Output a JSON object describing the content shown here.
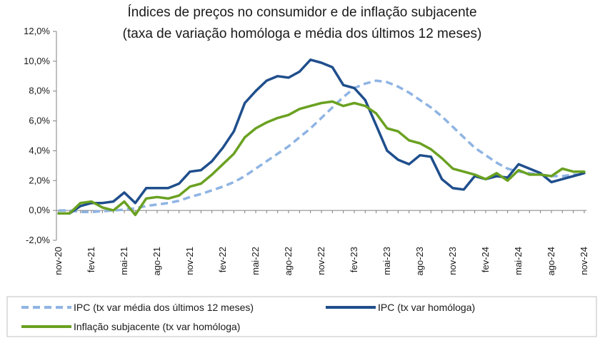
{
  "chart_data": {
    "type": "line",
    "title": "Índices de preços no consumidor e de inflação subjacente",
    "subtitle": "(taxa de variação homóloga e média dos últimos 12 meses)",
    "ylim": [
      -2,
      12
    ],
    "y_ticks": [
      "-2,0%",
      "0,0%",
      "2,0%",
      "4,0%",
      "6,0%",
      "8,0%",
      "10,0%",
      "12,0%"
    ],
    "y_tick_values": [
      -2,
      0,
      2,
      4,
      6,
      8,
      10,
      12
    ],
    "x": [
      "nov-20",
      "dez-20",
      "jan-21",
      "fev-21",
      "mar-21",
      "abr-21",
      "mai-21",
      "jun-21",
      "jul-21",
      "ago-21",
      "set-21",
      "out-21",
      "nov-21",
      "dez-21",
      "jan-22",
      "fev-22",
      "mar-22",
      "abr-22",
      "mai-22",
      "jun-22",
      "jul-22",
      "ago-22",
      "set-22",
      "out-22",
      "nov-22",
      "dez-22",
      "jan-23",
      "fev-23",
      "mar-23",
      "abr-23",
      "mai-23",
      "jun-23",
      "jul-23",
      "ago-23",
      "set-23",
      "out-23",
      "nov-23",
      "dez-23",
      "jan-24",
      "fev-24",
      "mar-24",
      "abr-24",
      "mai-24",
      "jun-24",
      "jul-24",
      "ago-24",
      "set-24",
      "out-24",
      "nov-24"
    ],
    "x_tick_labels": [
      "nov-20",
      "fev-21",
      "mai-21",
      "ago-21",
      "nov-21",
      "fev-22",
      "mai-22",
      "ago-22",
      "nov-22",
      "fev-23",
      "mai-23",
      "ago-23",
      "nov-23",
      "fev-24",
      "mai-24",
      "ago-24",
      "nov-24"
    ],
    "x_tick_index": [
      0,
      3,
      6,
      9,
      12,
      15,
      18,
      21,
      24,
      27,
      30,
      33,
      36,
      39,
      42,
      45,
      48
    ],
    "grid": false,
    "legend_position": "bottom",
    "series": [
      {
        "name": "IPC (tx var média dos últimos 12 meses)",
        "color": "#8fb4e3",
        "style": "dashed",
        "values": [
          0.0,
          0.0,
          -0.1,
          -0.1,
          -0.05,
          0.0,
          0.05,
          0.15,
          0.3,
          0.4,
          0.5,
          0.65,
          0.9,
          1.1,
          1.35,
          1.6,
          1.9,
          2.3,
          2.8,
          3.3,
          3.8,
          4.3,
          4.9,
          5.5,
          6.2,
          6.9,
          7.6,
          8.2,
          8.5,
          8.7,
          8.6,
          8.3,
          7.9,
          7.4,
          6.9,
          6.3,
          5.6,
          4.9,
          4.2,
          3.7,
          3.2,
          2.8,
          2.6,
          2.5,
          2.4,
          2.3,
          2.3,
          2.4,
          2.4
        ]
      },
      {
        "name": "IPC (tx var homóloga)",
        "color": "#1f4e8c",
        "style": "solid",
        "values": [
          -0.2,
          -0.2,
          0.3,
          0.5,
          0.5,
          0.6,
          1.2,
          0.5,
          1.5,
          1.5,
          1.5,
          1.8,
          2.6,
          2.7,
          3.3,
          4.2,
          5.3,
          7.2,
          8.0,
          8.7,
          9.0,
          8.9,
          9.3,
          10.1,
          9.9,
          9.6,
          8.4,
          8.2,
          7.4,
          5.7,
          4.0,
          3.4,
          3.1,
          3.7,
          3.6,
          2.1,
          1.5,
          1.4,
          2.3,
          2.1,
          2.3,
          2.2,
          3.1,
          2.8,
          2.5,
          1.9,
          2.1,
          2.3,
          2.5
        ]
      },
      {
        "name": "Inflação subjacente (tx var homóloga)",
        "color": "#6aa121",
        "style": "solid",
        "values": [
          -0.2,
          -0.2,
          0.5,
          0.6,
          0.2,
          0.0,
          0.6,
          -0.3,
          0.8,
          0.9,
          0.8,
          1.0,
          1.6,
          1.8,
          2.4,
          3.1,
          3.8,
          4.9,
          5.5,
          5.9,
          6.2,
          6.4,
          6.8,
          7.0,
          7.2,
          7.3,
          7.0,
          7.2,
          7.0,
          6.5,
          5.5,
          5.3,
          4.7,
          4.5,
          4.1,
          3.5,
          2.8,
          2.6,
          2.4,
          2.1,
          2.5,
          2.0,
          2.7,
          2.4,
          2.4,
          2.3,
          2.8,
          2.6,
          2.6
        ]
      }
    ]
  }
}
